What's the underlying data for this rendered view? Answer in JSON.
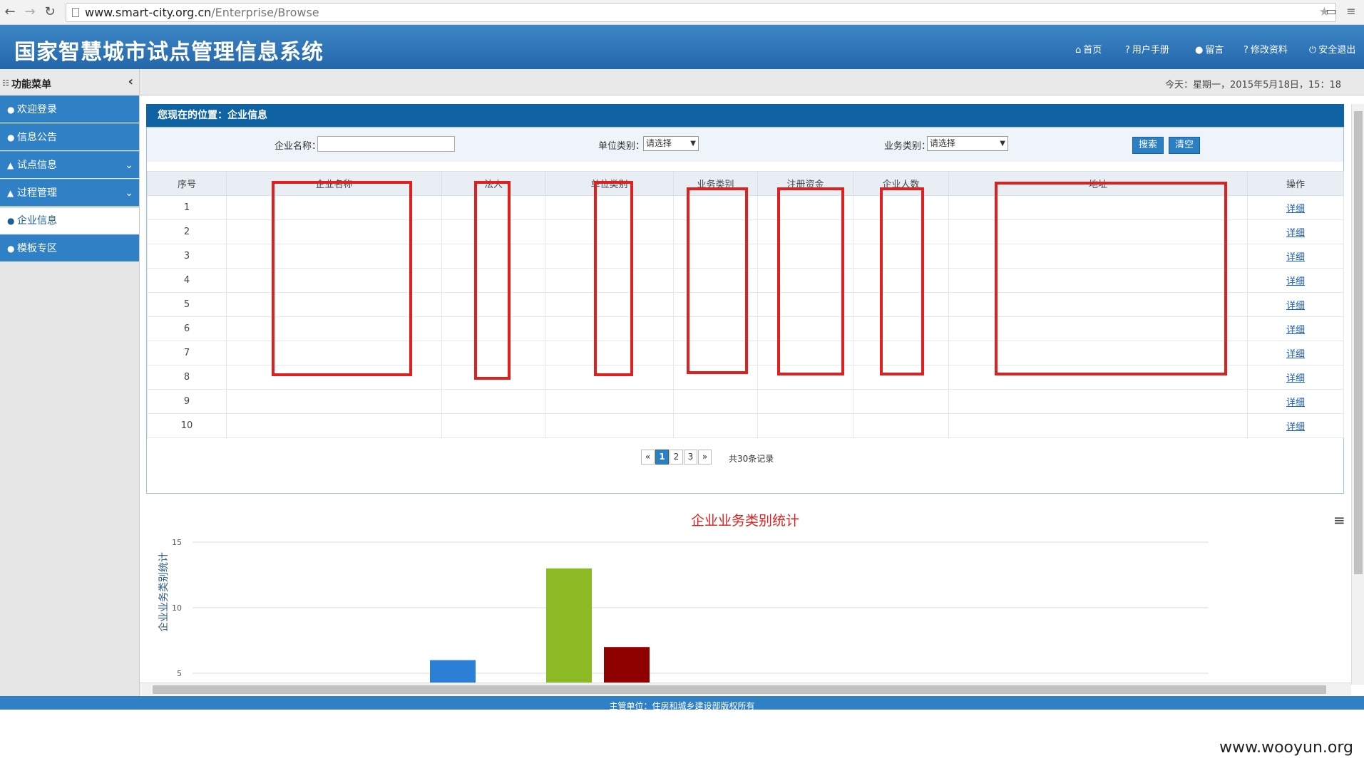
{
  "browser": {
    "url_host": "www.smart-city.org.cn",
    "url_path": "/Enterprise/Browse",
    "back_icon": "arrow-left-icon",
    "forward_icon": "arrow-right-icon",
    "reload_icon": "reload-icon"
  },
  "header": {
    "title": "国家智慧城市试点管理信息系统",
    "links": [
      {
        "label": "首页",
        "icon": "home-icon"
      },
      {
        "label": "用户手册",
        "icon": "help-icon"
      },
      {
        "label": "留言",
        "icon": "message-icon"
      },
      {
        "label": "修改资料",
        "icon": "help-icon"
      },
      {
        "label": "安全退出",
        "icon": "power-icon"
      }
    ]
  },
  "menu": {
    "title": "功能菜单",
    "items": [
      {
        "label": "欢迎登录"
      },
      {
        "label": "信息公告"
      },
      {
        "label": "试点信息"
      },
      {
        "label": "过程管理"
      },
      {
        "label": "企业信息"
      },
      {
        "label": "模板专区"
      }
    ]
  },
  "status": {
    "today": "今天：星期一，2015年5月18日，15：18"
  },
  "breadcrumb": "您现在的位置：企业信息",
  "search": {
    "name_label": "企业名称：",
    "unit_type_label": "单位类别：",
    "unit_type_value": "请选择",
    "biz_type_label": "业务类别：",
    "biz_type_value": "请选择",
    "search_button": "搜索",
    "clear_button": "清空"
  },
  "table": {
    "headers": [
      "序号",
      "企业名称",
      "法人",
      "单位类别",
      "业务类别",
      "注册资金",
      "企业人数",
      "地址",
      "操作"
    ],
    "rows": [
      {
        "no": "1",
        "op": "详细"
      },
      {
        "no": "2",
        "op": "详细"
      },
      {
        "no": "3",
        "op": "详细"
      },
      {
        "no": "4",
        "op": "详细"
      },
      {
        "no": "5",
        "op": "详细"
      },
      {
        "no": "6",
        "op": "详细"
      },
      {
        "no": "7",
        "op": "详细"
      },
      {
        "no": "8",
        "op": "详细"
      },
      {
        "no": "9",
        "op": "详细"
      },
      {
        "no": "10",
        "op": "详细"
      }
    ]
  },
  "pagination": {
    "prev": "«",
    "pages": [
      "1",
      "2",
      "3"
    ],
    "current": "1",
    "next": "»",
    "total": "共30条记录"
  },
  "chart_data": {
    "type": "bar",
    "title": "企业业务类别统计",
    "ylabel": "企业业务类别统计",
    "xlabel": "",
    "ylim": [
      0,
      15
    ],
    "yticks": [
      "15",
      "10",
      "5"
    ],
    "series": [
      {
        "values": [
          6
        ],
        "color": "#2b7fd6"
      },
      {
        "values": [
          13
        ],
        "color": "#8cba24"
      },
      {
        "values": [
          7
        ],
        "color": "#8f0000"
      }
    ]
  },
  "footer": "主管单位：住房和城乡建设部版权所有",
  "watermark": "www.wooyun.org"
}
